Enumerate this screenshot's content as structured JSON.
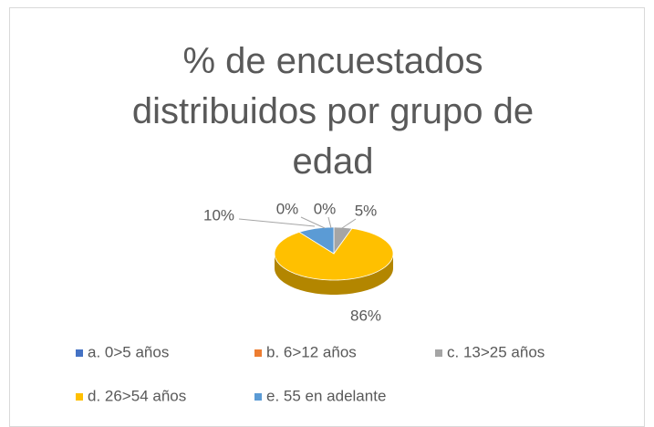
{
  "chart_data": {
    "type": "pie",
    "title": "% de encuestados distribuidos por grupo de edad",
    "categories": [
      "a. 0>5 años",
      "b. 6>12 años",
      "c. 13>25 años",
      "d. 26>54 años",
      "e. 55 en adelante"
    ],
    "values": [
      0,
      0,
      5,
      86,
      10
    ],
    "value_labels": [
      "0%",
      "0%",
      "5%",
      "86%",
      "10%"
    ],
    "colors": [
      "#4472c4",
      "#ed7d31",
      "#a5a5a5",
      "#ffc000",
      "#5b9bd5"
    ],
    "legend": "bottom"
  }
}
